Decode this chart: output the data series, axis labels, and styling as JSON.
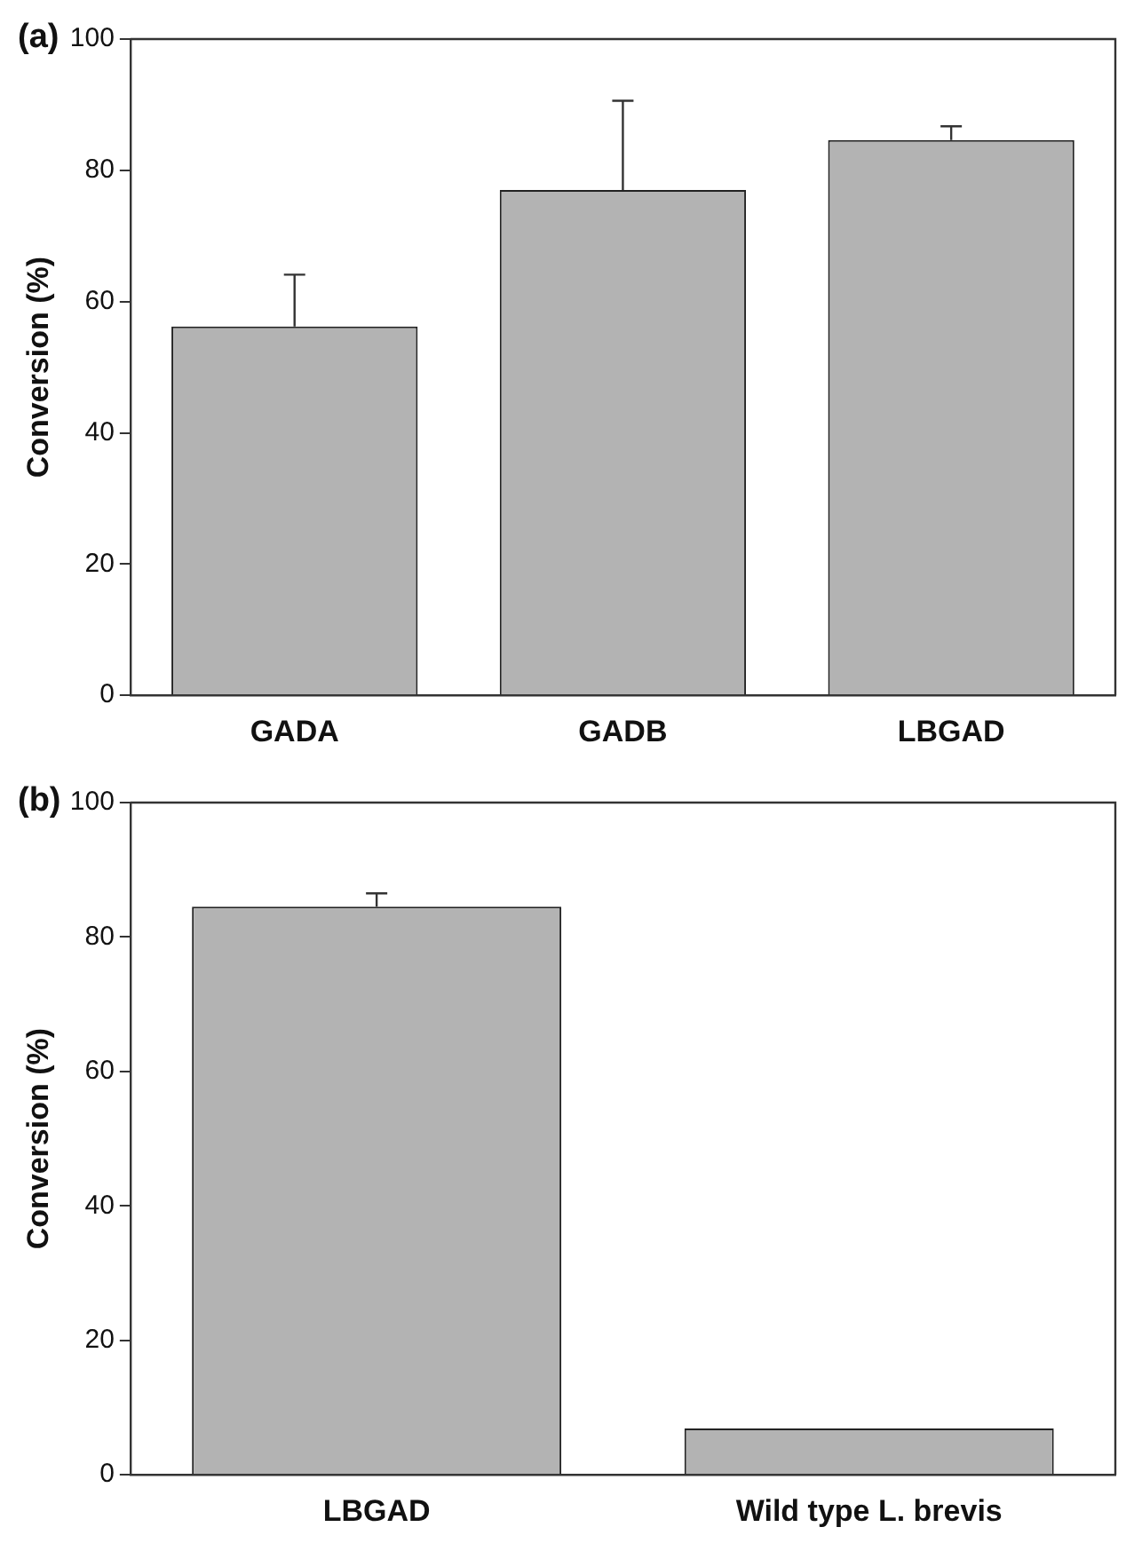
{
  "chart_data": [
    {
      "type": "bar",
      "title": "(a)",
      "ylabel": "Conversion (%)",
      "categories": [
        "GADA",
        "GADB",
        "LBGAD"
      ],
      "values": [
        56.2,
        77.0,
        84.6
      ],
      "errors": [
        [
          56.2,
          64.1
        ],
        [
          77.0,
          90.6
        ],
        [
          84.6,
          86.7
        ]
      ],
      "color": "#b3b3b3",
      "ylim": [
        0,
        100
      ],
      "yticks": [
        0,
        20,
        40,
        60,
        80,
        100
      ],
      "grid": false,
      "legend": false
    },
    {
      "type": "bar",
      "title": "(b)",
      "ylabel": "Conversion (%)",
      "categories": [
        "LBGAD",
        "Wild type L. brevis"
      ],
      "values": [
        84.5,
        6.9
      ],
      "errors": [
        [
          84.5,
          86.5
        ],
        null
      ],
      "color": "#b3b3b3",
      "ylim": [
        0,
        100
      ],
      "yticks": [
        0,
        20,
        40,
        60,
        80,
        100
      ],
      "grid": false,
      "legend": false
    }
  ]
}
